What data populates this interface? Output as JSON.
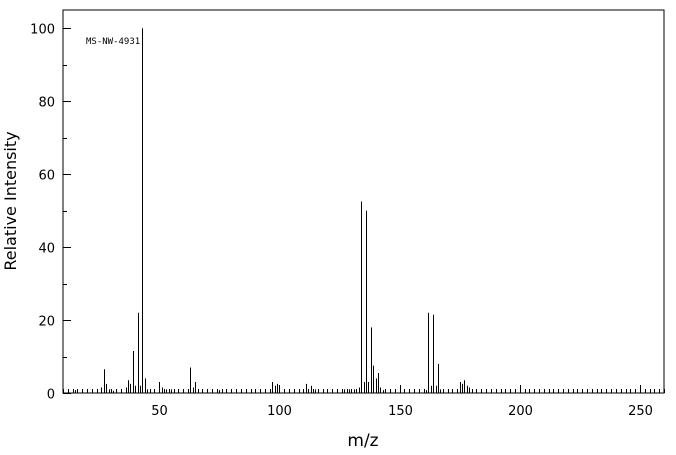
{
  "chart_data": {
    "type": "bar",
    "annotation": "MS-NW-4931",
    "xlabel": "m/z",
    "ylabel": "Relative Intensity",
    "xlim": [
      10,
      260
    ],
    "ylim": [
      0,
      105
    ],
    "x_major_ticks": [
      50,
      100,
      150,
      200,
      250
    ],
    "x_minor_step": 2,
    "y_major_ticks": [
      0,
      20,
      40,
      60,
      80,
      100
    ],
    "y_minor_step": 10,
    "grid": false,
    "peaks": [
      {
        "mz": 14,
        "intensity": 0.4
      },
      {
        "mz": 15,
        "intensity": 0.8
      },
      {
        "mz": 18,
        "intensity": 0.8
      },
      {
        "mz": 26,
        "intensity": 1.5
      },
      {
        "mz": 27,
        "intensity": 6.5
      },
      {
        "mz": 28,
        "intensity": 2.5
      },
      {
        "mz": 29,
        "intensity": 1.0
      },
      {
        "mz": 31,
        "intensity": 0.6
      },
      {
        "mz": 32,
        "intensity": 0.8
      },
      {
        "mz": 36,
        "intensity": 1.5
      },
      {
        "mz": 37,
        "intensity": 3.5
      },
      {
        "mz": 38,
        "intensity": 2.5
      },
      {
        "mz": 39,
        "intensity": 11.5
      },
      {
        "mz": 40,
        "intensity": 2.0
      },
      {
        "mz": 41,
        "intensity": 22.0
      },
      {
        "mz": 42,
        "intensity": 2.0
      },
      {
        "mz": 43,
        "intensity": 100.0
      },
      {
        "mz": 44,
        "intensity": 4.0
      },
      {
        "mz": 45,
        "intensity": 1.0
      },
      {
        "mz": 50,
        "intensity": 3.0
      },
      {
        "mz": 51,
        "intensity": 1.5
      },
      {
        "mz": 53,
        "intensity": 1.0
      },
      {
        "mz": 55,
        "intensity": 1.0
      },
      {
        "mz": 62,
        "intensity": 1.0
      },
      {
        "mz": 63,
        "intensity": 7.0
      },
      {
        "mz": 64,
        "intensity": 1.5
      },
      {
        "mz": 65,
        "intensity": 3.0
      },
      {
        "mz": 75,
        "intensity": 0.8
      },
      {
        "mz": 76,
        "intensity": 0.8
      },
      {
        "mz": 97,
        "intensity": 3.0
      },
      {
        "mz": 98,
        "intensity": 2.0
      },
      {
        "mz": 99,
        "intensity": 2.5
      },
      {
        "mz": 100,
        "intensity": 1.5
      },
      {
        "mz": 111,
        "intensity": 2.5
      },
      {
        "mz": 113,
        "intensity": 2.0
      },
      {
        "mz": 115,
        "intensity": 1.0
      },
      {
        "mz": 127,
        "intensity": 1.0
      },
      {
        "mz": 129,
        "intensity": 1.0
      },
      {
        "mz": 131,
        "intensity": 1.0
      },
      {
        "mz": 133,
        "intensity": 1.5
      },
      {
        "mz": 134,
        "intensity": 52.5
      },
      {
        "mz": 135,
        "intensity": 3.0
      },
      {
        "mz": 136,
        "intensity": 50.0
      },
      {
        "mz": 137,
        "intensity": 3.0
      },
      {
        "mz": 138,
        "intensity": 18.0
      },
      {
        "mz": 139,
        "intensity": 7.5
      },
      {
        "mz": 140,
        "intensity": 4.0
      },
      {
        "mz": 141,
        "intensity": 5.5
      },
      {
        "mz": 142,
        "intensity": 1.5
      },
      {
        "mz": 143,
        "intensity": 0.8
      },
      {
        "mz": 160,
        "intensity": 0.8
      },
      {
        "mz": 161,
        "intensity": 0.8
      },
      {
        "mz": 162,
        "intensity": 22.0
      },
      {
        "mz": 163,
        "intensity": 2.0
      },
      {
        "mz": 164,
        "intensity": 21.5
      },
      {
        "mz": 165,
        "intensity": 2.0
      },
      {
        "mz": 166,
        "intensity": 8.0
      },
      {
        "mz": 167,
        "intensity": 1.0
      },
      {
        "mz": 168,
        "intensity": 0.6
      },
      {
        "mz": 174,
        "intensity": 0.8
      },
      {
        "mz": 175,
        "intensity": 3.0
      },
      {
        "mz": 176,
        "intensity": 2.5
      },
      {
        "mz": 177,
        "intensity": 3.5
      },
      {
        "mz": 178,
        "intensity": 2.0
      },
      {
        "mz": 179,
        "intensity": 1.5
      },
      {
        "mz": 180,
        "intensity": 0.8
      }
    ]
  }
}
